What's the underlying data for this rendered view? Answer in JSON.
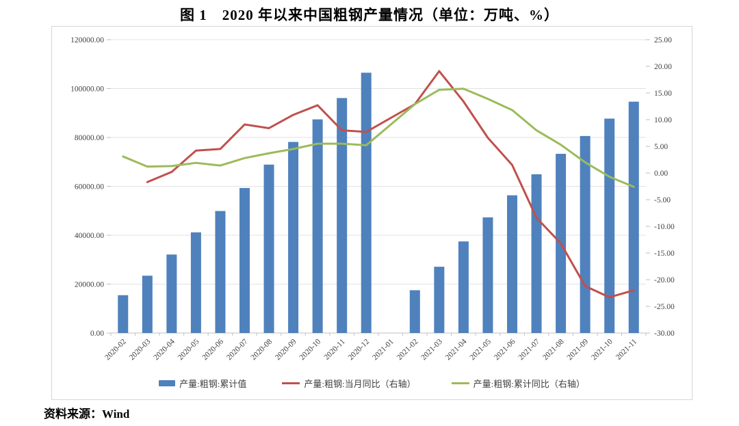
{
  "title": "图 1　2020 年以来中国粗钢产量情况（单位：万吨、%）",
  "source": "资料来源：Wind",
  "colors": {
    "bar": "#4f81bd",
    "monthly_yoy_line": "#c0504d",
    "cumulative_yoy_line": "#9bbb59",
    "grid": "#e2e2e2",
    "axis": "#bfbfbf",
    "tick_text": "#404040",
    "border": "#d6d6d6"
  },
  "chart_data": {
    "type": "bar",
    "subtype": "bar-and-line-combo-dual-axis",
    "grid": true,
    "legend_position": "bottom",
    "categories": [
      "2020-02",
      "2020-03",
      "2020-04",
      "2020-05",
      "2020-06",
      "2020-07",
      "2020-08",
      "2020-09",
      "2020-10",
      "2020-11",
      "2020-12",
      "2021-01",
      "2021-02",
      "2021-03",
      "2021-04",
      "2021-05",
      "2021-06",
      "2021-07",
      "2021-08",
      "2021-09",
      "2021-10",
      "2021-11"
    ],
    "series": [
      {
        "name": "产量:粗钢:累计值",
        "type": "bar",
        "axis": "left",
        "values": [
          15470,
          23445,
          32101,
          41175,
          49901,
          59317,
          68889,
          78159,
          87393,
          96116,
          106477,
          null,
          17499,
          27104,
          37456,
          47310,
          56333,
          64933,
          73302,
          80589,
          87705,
          94636
        ]
      },
      {
        "name": "产量:粗钢:当月同比（右轴）",
        "type": "line",
        "axis": "right",
        "values": [
          null,
          -1.7,
          0.2,
          4.2,
          4.5,
          9.1,
          8.4,
          10.9,
          12.7,
          8.0,
          7.7,
          null,
          12.9,
          19.1,
          13.4,
          6.6,
          1.5,
          -8.4,
          -13.2,
          -21.2,
          -23.3,
          -22.0
        ]
      },
      {
        "name": "产量:粗钢:累计同比（右轴）",
        "type": "line",
        "axis": "right",
        "values": [
          3.1,
          1.2,
          1.3,
          1.9,
          1.4,
          2.8,
          3.7,
          4.5,
          5.5,
          5.5,
          5.2,
          null,
          12.9,
          15.6,
          15.8,
          13.9,
          11.8,
          8.0,
          5.3,
          2.0,
          -0.7,
          -2.6
        ]
      }
    ],
    "left_axis": {
      "min": 0,
      "max": 120000,
      "tick_labels": [
        "0.00",
        "20000.00",
        "40000.00",
        "60000.00",
        "80000.00",
        "100000.00",
        "120000.00"
      ]
    },
    "right_axis": {
      "min": -30,
      "max": 25,
      "tick_labels": [
        "25.00",
        "20.00",
        "15.00",
        "10.00",
        "5.00",
        "0.00",
        "-5.00",
        "-10.00",
        "-15.00",
        "-20.00",
        "-25.00",
        "-30.00"
      ]
    }
  }
}
